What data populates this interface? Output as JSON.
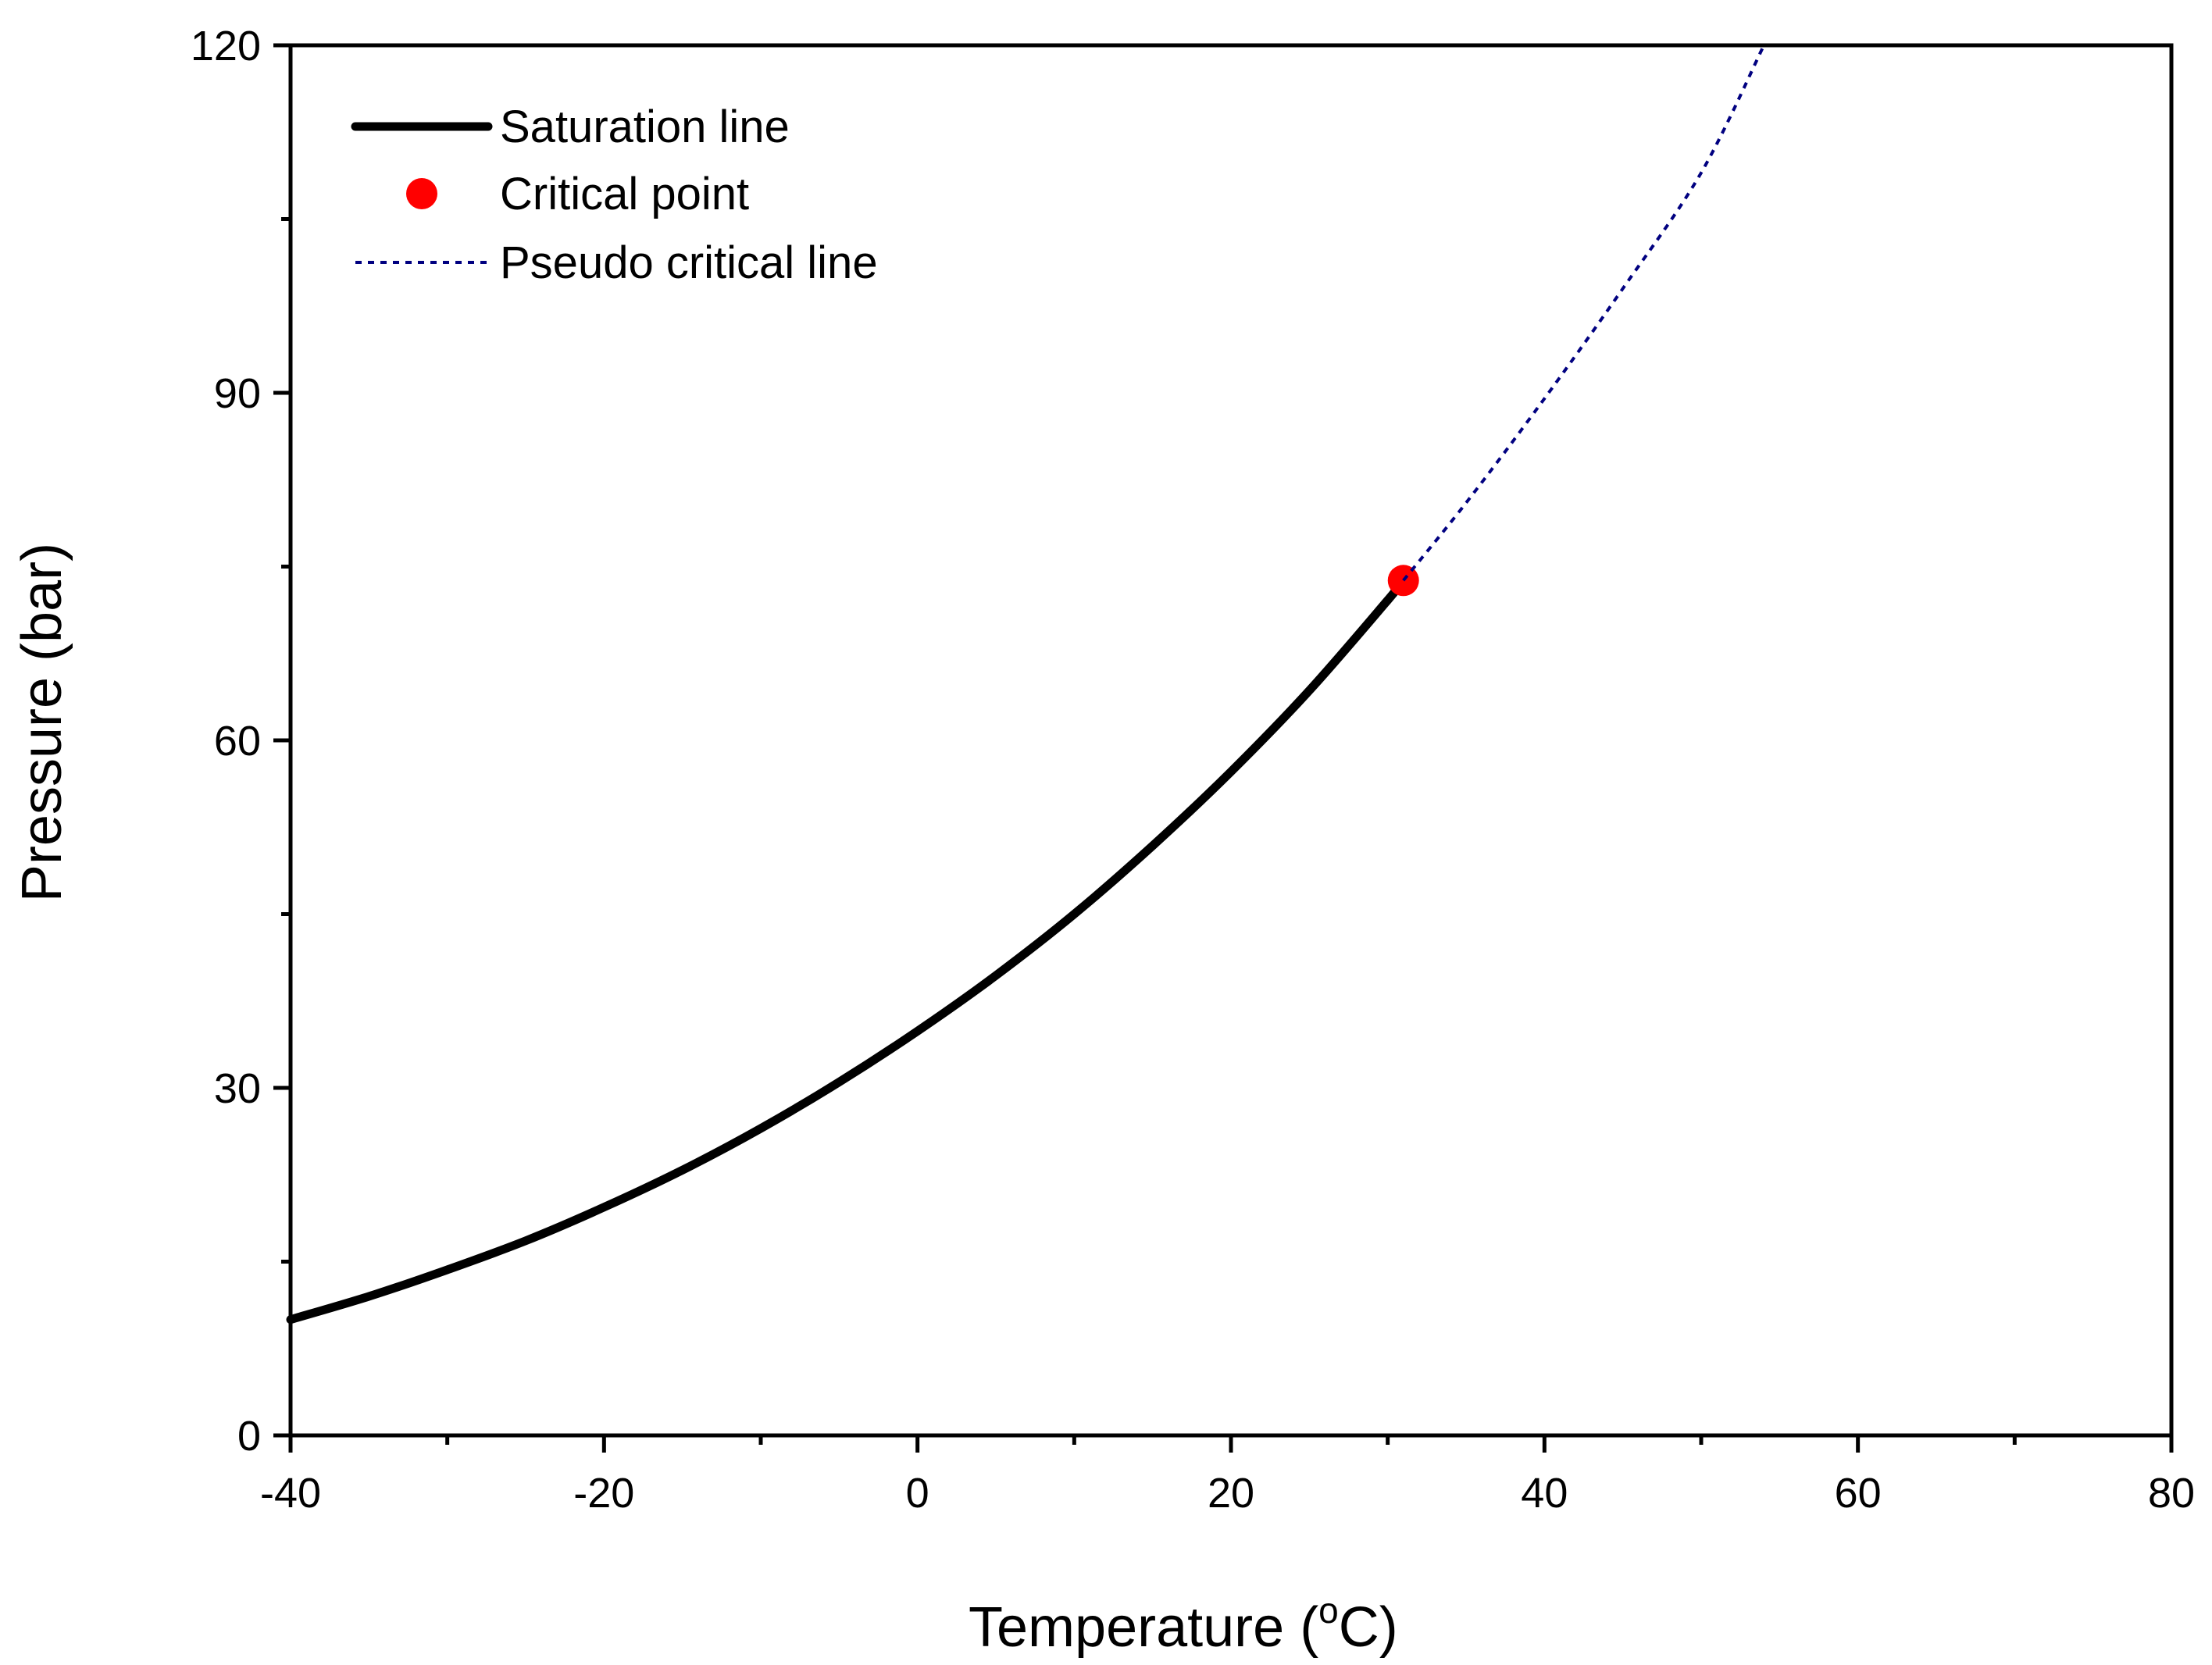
{
  "chart_data": {
    "type": "line",
    "title": "",
    "xlabel": "Temperature (",
    "xlabel_sup": "o",
    "xlabel_tail": "C)",
    "ylabel": "Pressure (bar)",
    "xlim": [
      -40,
      80
    ],
    "ylim": [
      0,
      120
    ],
    "xticks": [
      -40,
      -20,
      0,
      20,
      40,
      60,
      80
    ],
    "yticks": [
      0,
      30,
      60,
      90,
      120
    ],
    "grid": false,
    "legend_position": "top-left",
    "series": [
      {
        "name": "Saturation line",
        "style": "solid-thick",
        "color": "#000000",
        "x": [
          -40,
          -35,
          -30,
          -25,
          -20,
          -15,
          -10,
          -5,
          0,
          5,
          10,
          15,
          20,
          25,
          30,
          31
        ],
        "y": [
          10.0,
          12.0,
          14.3,
          16.8,
          19.7,
          22.9,
          26.5,
          30.5,
          34.9,
          39.7,
          45.0,
          50.9,
          57.3,
          64.3,
          72.1,
          73.8
        ]
      },
      {
        "name": "Critical point",
        "style": "marker",
        "color": "#ff0000",
        "x": [
          31
        ],
        "y": [
          73.8
        ]
      },
      {
        "name": "Pseudo critical line",
        "style": "dotted",
        "color": "#000080",
        "x": [
          31,
          35,
          40,
          45,
          50,
          54
        ],
        "y": [
          73.8,
          80.5,
          89.5,
          99.0,
          109.0,
          120.0
        ]
      }
    ]
  }
}
